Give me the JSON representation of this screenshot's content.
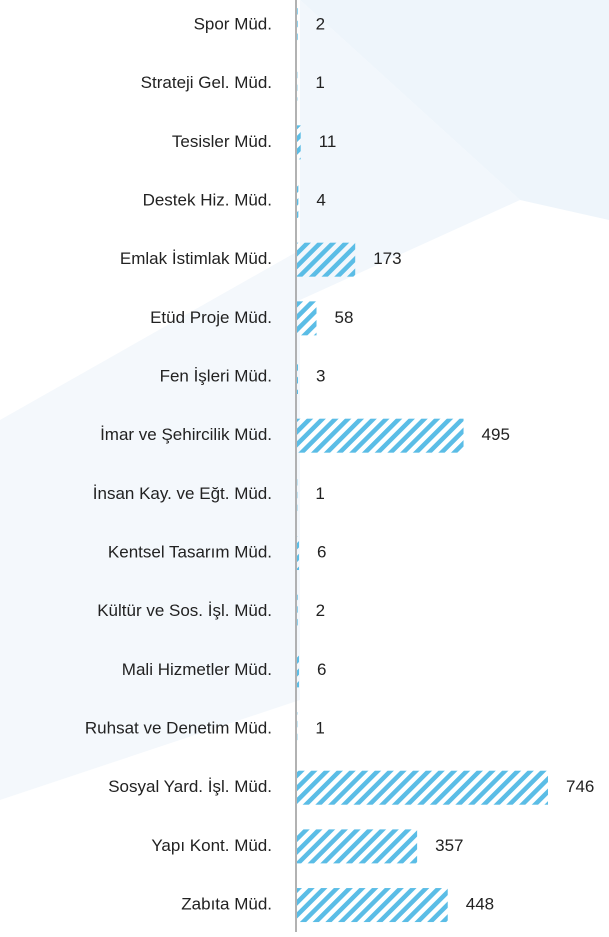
{
  "chart_data": {
    "type": "bar",
    "orientation": "horizontal",
    "categories": [
      "Spor Müd.",
      "Strateji Gel. Müd.",
      "Tesisler Müd.",
      "Destek Hiz. Müd.",
      "Emlak İstimlak Müd.",
      "Etüd Proje Müd.",
      "Fen İşleri Müd.",
      "İmar ve Şehircilik Müd.",
      "İnsan Kay. ve Eğt. Müd.",
      "Kentsel Tasarım Müd.",
      "Kültür ve Sos. İşl. Müd.",
      "Mali Hizmetler Müd.",
      "Ruhsat ve Denetim Müd.",
      "Sosyal Yard. İşl. Müd.",
      "Yapı Kont. Müd.",
      "Zabıta Müd."
    ],
    "values": [
      2,
      1,
      11,
      4,
      173,
      58,
      3,
      495,
      1,
      6,
      2,
      6,
      1,
      746,
      357,
      448
    ],
    "color": "#5bbde6",
    "pattern": "hatched"
  }
}
